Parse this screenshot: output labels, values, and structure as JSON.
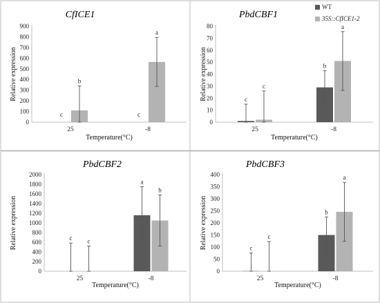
{
  "colors": {
    "wt": "#595959",
    "oe": "#b3b3b3"
  },
  "chart_data": [
    {
      "type": "bar",
      "title": "CfICE1",
      "xlabel": "Temperature(°C)",
      "ylabel": "Relative expression",
      "categories": [
        "25",
        "-8"
      ],
      "ylim": [
        0,
        900
      ],
      "yticks": [
        "0",
        "100",
        "200",
        "300",
        "400",
        "500",
        "600",
        "700",
        "800",
        "900"
      ],
      "series": [
        {
          "values": [
            0,
            0
          ],
          "errors": [
            0,
            0
          ],
          "sig": [
            "c",
            "c"
          ]
        },
        {
          "values": [
            110,
            565
          ],
          "errors": [
            230,
            230
          ],
          "sig": [
            "b",
            "a"
          ]
        }
      ]
    },
    {
      "type": "bar",
      "title": "PbdCBF1",
      "xlabel": "Temperature(°C)",
      "ylabel": "Relative expression",
      "categories": [
        "25",
        "-8"
      ],
      "ylim": [
        0,
        80
      ],
      "yticks": [
        "0",
        "10",
        "20",
        "30",
        "40",
        "50",
        "60",
        "70",
        "80"
      ],
      "series": [
        {
          "name": "WT",
          "values": [
            1,
            29
          ],
          "errors": [
            14,
            14
          ],
          "sig": [
            "c",
            "b"
          ]
        },
        {
          "name": "35S::CfICE1-2",
          "values": [
            2,
            51
          ],
          "errors": [
            24,
            24.5
          ],
          "sig": [
            "c",
            "a"
          ]
        }
      ]
    },
    {
      "type": "bar",
      "title": "PbdCBF2",
      "xlabel": "Temperature(°C)",
      "ylabel": "Relative expression",
      "categories": [
        "25",
        "-8"
      ],
      "ylim": [
        0,
        2000
      ],
      "yticks": [
        "0",
        "200",
        "400",
        "600",
        "800",
        "1000",
        "1200",
        "1400",
        "1600",
        "1800",
        "2000"
      ],
      "series": [
        {
          "values": [
            3,
            1160
          ],
          "errors": [
            580,
            590
          ],
          "sig": [
            "c",
            "a"
          ]
        },
        {
          "values": [
            2,
            1050
          ],
          "errors": [
            520,
            530
          ],
          "sig": [
            "c",
            "b"
          ]
        }
      ]
    },
    {
      "type": "bar",
      "title": "PbdCBF3",
      "xlabel": "Temperature(°C)",
      "ylabel": "Relative expression",
      "categories": [
        "25",
        "-8"
      ],
      "ylim": [
        0,
        400
      ],
      "yticks": [
        "0",
        "50",
        "100",
        "150",
        "200",
        "250",
        "300",
        "350",
        "400"
      ],
      "series": [
        {
          "values": [
            1,
            150
          ],
          "errors": [
            75,
            75
          ],
          "sig": [
            "c",
            "b"
          ]
        },
        {
          "values": [
            1,
            246
          ],
          "errors": [
            122,
            122
          ],
          "sig": [
            "c",
            "a"
          ]
        }
      ]
    }
  ]
}
